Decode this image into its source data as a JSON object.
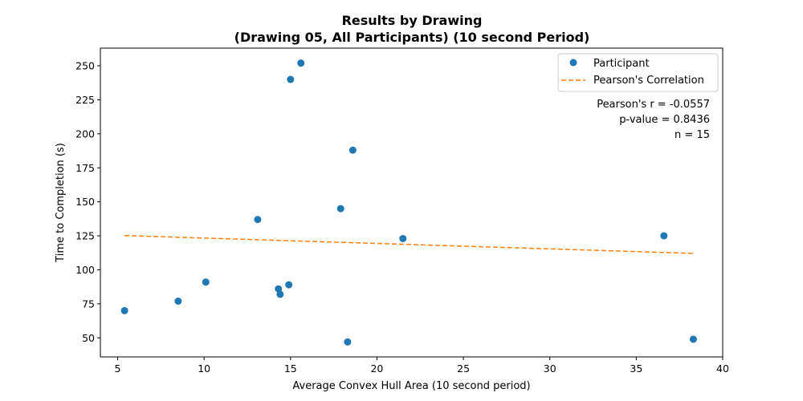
{
  "chart_data": {
    "type": "scatter",
    "title_line1": "Results by Drawing",
    "title_line2": "(Drawing 05, All Participants) (10 second Period)",
    "xlabel": "Average Convex Hull Area (10 second period)",
    "ylabel": "Time to Completion (s)",
    "xlim": [
      4.0,
      40.0
    ],
    "ylim": [
      36.0,
      263.0
    ],
    "x_ticks": [
      5,
      10,
      15,
      20,
      25,
      30,
      35,
      40
    ],
    "y_ticks": [
      50,
      75,
      100,
      125,
      150,
      175,
      200,
      225,
      250
    ],
    "grid": false,
    "legend_position": "top-right",
    "series": [
      {
        "name": "Participant",
        "kind": "scatter",
        "color": "#1f77b4",
        "points": [
          {
            "x": 5.4,
            "y": 70
          },
          {
            "x": 8.5,
            "y": 77
          },
          {
            "x": 10.1,
            "y": 91
          },
          {
            "x": 13.1,
            "y": 137
          },
          {
            "x": 14.3,
            "y": 86
          },
          {
            "x": 14.4,
            "y": 82
          },
          {
            "x": 14.9,
            "y": 89
          },
          {
            "x": 15.0,
            "y": 240
          },
          {
            "x": 15.6,
            "y": 252
          },
          {
            "x": 17.9,
            "y": 145
          },
          {
            "x": 18.3,
            "y": 47
          },
          {
            "x": 18.6,
            "y": 188
          },
          {
            "x": 21.5,
            "y": 123
          },
          {
            "x": 36.6,
            "y": 125
          },
          {
            "x": 38.3,
            "y": 49
          }
        ]
      },
      {
        "name": "Pearson's Correlation",
        "kind": "line",
        "style": "dashed",
        "color": "#ff7f0e",
        "points": [
          {
            "x": 5.4,
            "y": 125.2
          },
          {
            "x": 38.3,
            "y": 112.1
          }
        ]
      }
    ],
    "annotations": {
      "pearson_r": "Pearson's r = -0.0557",
      "p_value": "p-value = 0.8436",
      "n": "n = 15"
    }
  }
}
